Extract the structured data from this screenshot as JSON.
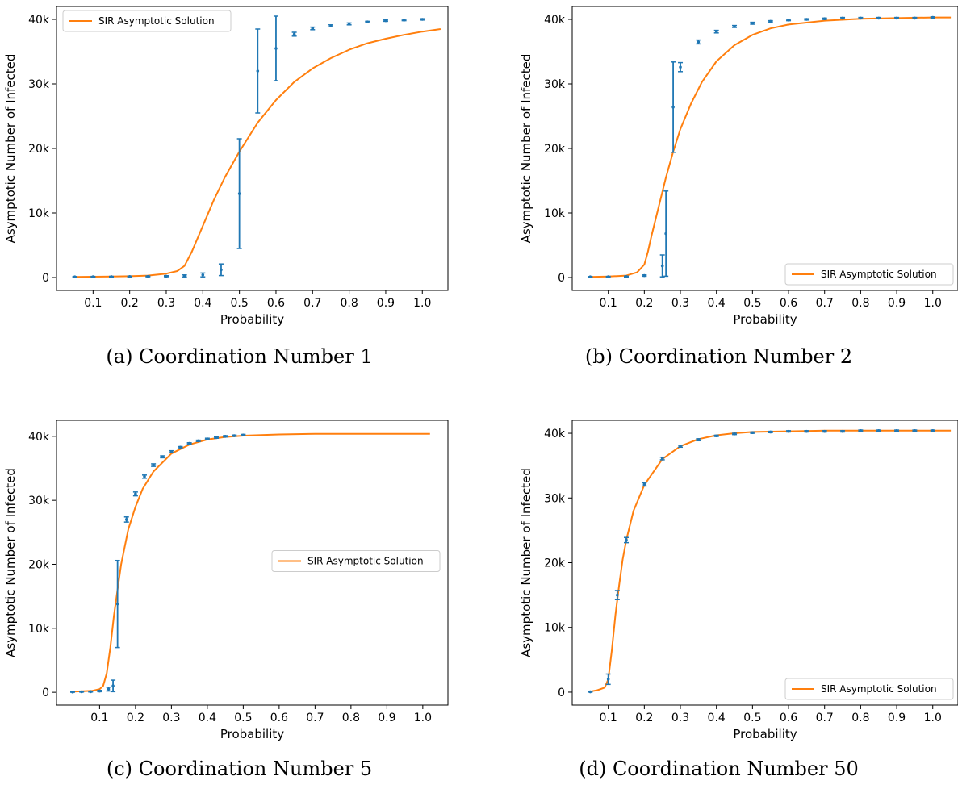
{
  "colors": {
    "data": "#1f77b4",
    "model": "#ff7f0e"
  },
  "chart_data": [
    {
      "type": "scatter",
      "caption": "(a) Coordination Number 1",
      "xlabel": "Probability",
      "ylabel": "Asymptotic Number of Infected",
      "xlim": [
        0.0,
        1.07
      ],
      "ylim": [
        -2000,
        42000
      ],
      "xticks": [
        0.1,
        0.2,
        0.3,
        0.4,
        0.5,
        0.6,
        0.7,
        0.8,
        0.9,
        1.0
      ],
      "xtick_labels": [
        "0.1",
        "0.2",
        "0.3",
        "0.4",
        "0.5",
        "0.6",
        "0.7",
        "0.8",
        "0.9",
        "1.0"
      ],
      "yticks": [
        0,
        10000,
        20000,
        30000,
        40000
      ],
      "ytick_labels": [
        "0",
        "10k",
        "20k",
        "30k",
        "40k"
      ],
      "legend": {
        "label": "SIR Asymptotic Solution",
        "position": "upper-left"
      },
      "grid": false,
      "series": [
        {
          "type": "errorbar",
          "x": [
            0.05,
            0.1,
            0.15,
            0.2,
            0.25,
            0.3,
            0.35,
            0.4,
            0.45,
            0.5,
            0.55,
            0.6,
            0.65,
            0.7,
            0.75,
            0.8,
            0.85,
            0.9,
            0.95,
            1.0
          ],
          "y": [
            100,
            120,
            130,
            150,
            170,
            200,
            250,
            400,
            1200,
            13000,
            32000,
            35500,
            37700,
            38600,
            39000,
            39300,
            39600,
            39800,
            39900,
            40000
          ],
          "err": [
            50,
            50,
            50,
            60,
            60,
            80,
            150,
            300,
            900,
            8500,
            6500,
            5000,
            300,
            200,
            150,
            150,
            100,
            100,
            100,
            100
          ]
        },
        {
          "name": "SIR Asymptotic Solution",
          "type": "line",
          "x": [
            0.05,
            0.1,
            0.15,
            0.2,
            0.25,
            0.3,
            0.33,
            0.35,
            0.37,
            0.4,
            0.43,
            0.46,
            0.5,
            0.55,
            0.6,
            0.65,
            0.7,
            0.75,
            0.8,
            0.85,
            0.9,
            0.95,
            1.0,
            1.05
          ],
          "y": [
            100,
            120,
            150,
            200,
            300,
            600,
            1000,
            1800,
            4000,
            8000,
            12000,
            15500,
            19500,
            24000,
            27500,
            30300,
            32400,
            34000,
            35300,
            36300,
            37000,
            37600,
            38100,
            38500
          ]
        }
      ]
    },
    {
      "type": "scatter",
      "caption": "(b) Coordination Number 2",
      "xlabel": "Probability",
      "ylabel": "Asymptotic Number of Infected",
      "xlim": [
        0.0,
        1.07
      ],
      "ylim": [
        -2000,
        42000
      ],
      "xticks": [
        0.1,
        0.2,
        0.3,
        0.4,
        0.5,
        0.6,
        0.7,
        0.8,
        0.9,
        1.0
      ],
      "xtick_labels": [
        "0.1",
        "0.2",
        "0.3",
        "0.4",
        "0.5",
        "0.6",
        "0.7",
        "0.8",
        "0.9",
        "1.0"
      ],
      "yticks": [
        0,
        10000,
        20000,
        30000,
        40000
      ],
      "ytick_labels": [
        "0",
        "10k",
        "20k",
        "30k",
        "40k"
      ],
      "legend": {
        "label": "SIR Asymptotic Solution",
        "position": "lower-right"
      },
      "grid": false,
      "series": [
        {
          "type": "errorbar",
          "x": [
            0.05,
            0.1,
            0.15,
            0.2,
            0.25,
            0.26,
            0.28,
            0.3,
            0.35,
            0.4,
            0.45,
            0.5,
            0.55,
            0.6,
            0.65,
            0.7,
            0.75,
            0.8,
            0.85,
            0.9,
            0.95,
            1.0
          ],
          "y": [
            100,
            120,
            150,
            300,
            1800,
            6800,
            26400,
            32600,
            36500,
            38100,
            38900,
            39400,
            39700,
            39900,
            40000,
            40100,
            40200,
            40200,
            40200,
            40200,
            40200,
            40300
          ],
          "err": [
            50,
            50,
            60,
            100,
            1700,
            6600,
            7000,
            700,
            300,
            200,
            150,
            150,
            100,
            100,
            100,
            100,
            100,
            100,
            100,
            100,
            100,
            100
          ]
        },
        {
          "name": "SIR Asymptotic Solution",
          "type": "line",
          "x": [
            0.05,
            0.1,
            0.15,
            0.18,
            0.2,
            0.21,
            0.22,
            0.24,
            0.26,
            0.28,
            0.3,
            0.33,
            0.36,
            0.4,
            0.45,
            0.5,
            0.55,
            0.6,
            0.7,
            0.8,
            0.9,
            1.0,
            1.05
          ],
          "y": [
            100,
            150,
            300,
            800,
            2000,
            4000,
            6500,
            11000,
            15500,
            19500,
            23000,
            27000,
            30300,
            33500,
            36000,
            37600,
            38600,
            39200,
            39800,
            40100,
            40200,
            40300,
            40300
          ]
        }
      ]
    },
    {
      "type": "scatter",
      "caption": "(c) Coordination Number 5",
      "xlabel": "Probability",
      "ylabel": "Asymptotic Number of Infected",
      "xlim": [
        -0.02,
        1.07
      ],
      "ylim": [
        -2000,
        42500
      ],
      "xticks": [
        0.1,
        0.2,
        0.3,
        0.4,
        0.5,
        0.6,
        0.7,
        0.8,
        0.9,
        1.0
      ],
      "xtick_labels": [
        "0.1",
        "0.2",
        "0.3",
        "0.4",
        "0.5",
        "0.6",
        "0.7",
        "0.8",
        "0.9",
        "1.0"
      ],
      "yticks": [
        0,
        10000,
        20000,
        30000,
        40000
      ],
      "ytick_labels": [
        "0",
        "10k",
        "20k",
        "30k",
        "40k"
      ],
      "legend": {
        "label": "SIR Asymptotic Solution",
        "position": "center-right"
      },
      "grid": false,
      "series": [
        {
          "type": "errorbar",
          "x": [
            0.025,
            0.05,
            0.075,
            0.1,
            0.125,
            0.1375,
            0.15,
            0.175,
            0.2,
            0.225,
            0.25,
            0.275,
            0.3,
            0.325,
            0.35,
            0.375,
            0.4,
            0.425,
            0.45,
            0.475,
            0.5
          ],
          "y": [
            50,
            80,
            100,
            200,
            500,
            1000,
            13800,
            27000,
            31000,
            33700,
            35500,
            36800,
            37600,
            38300,
            38900,
            39300,
            39600,
            39800,
            40000,
            40100,
            40200
          ],
          "err": [
            40,
            40,
            50,
            100,
            300,
            900,
            6800,
            400,
            300,
            250,
            200,
            150,
            150,
            100,
            100,
            100,
            100,
            100,
            100,
            100,
            100
          ]
        },
        {
          "name": "SIR Asymptotic Solution",
          "type": "line",
          "x": [
            0.025,
            0.05,
            0.08,
            0.1,
            0.11,
            0.12,
            0.13,
            0.14,
            0.15,
            0.16,
            0.18,
            0.2,
            0.22,
            0.25,
            0.3,
            0.35,
            0.4,
            0.45,
            0.5,
            0.6,
            0.7,
            0.8,
            1.0,
            1.02
          ],
          "y": [
            100,
            150,
            250,
            500,
            1000,
            3000,
            7000,
            12000,
            16000,
            20000,
            25500,
            29000,
            31800,
            34500,
            37300,
            38700,
            39500,
            39900,
            40100,
            40300,
            40400,
            40400,
            40400,
            40400
          ]
        }
      ]
    },
    {
      "type": "scatter",
      "caption": "(d) Coordination Number 50",
      "xlabel": "Probability",
      "ylabel": "Asymptotic Number of Infected",
      "xlim": [
        0.0,
        1.07
      ],
      "ylim": [
        -2000,
        42000
      ],
      "xticks": [
        0.1,
        0.2,
        0.3,
        0.4,
        0.5,
        0.6,
        0.7,
        0.8,
        0.9,
        1.0
      ],
      "xtick_labels": [
        "0.1",
        "0.2",
        "0.3",
        "0.4",
        "0.5",
        "0.6",
        "0.7",
        "0.8",
        "0.9",
        "1.0"
      ],
      "yticks": [
        0,
        10000,
        20000,
        30000,
        40000
      ],
      "ytick_labels": [
        "0",
        "10k",
        "20k",
        "30k",
        "40k"
      ],
      "legend": {
        "label": "SIR Asymptotic Solution",
        "position": "lower-right"
      },
      "grid": false,
      "series": [
        {
          "type": "errorbar",
          "x": [
            0.05,
            0.1,
            0.125,
            0.15,
            0.2,
            0.25,
            0.3,
            0.35,
            0.4,
            0.45,
            0.5,
            0.55,
            0.6,
            0.65,
            0.7,
            0.75,
            0.8,
            0.85,
            0.9,
            0.95,
            1.0
          ],
          "y": [
            50,
            2000,
            15000,
            23500,
            32100,
            36100,
            38000,
            39000,
            39600,
            39900,
            40100,
            40200,
            40300,
            40300,
            40300,
            40300,
            40400,
            40400,
            40400,
            40400,
            40400
          ],
          "err": [
            40,
            800,
            700,
            400,
            250,
            200,
            150,
            150,
            100,
            100,
            100,
            100,
            100,
            100,
            100,
            100,
            100,
            100,
            100,
            100,
            100
          ]
        },
        {
          "name": "SIR Asymptotic Solution",
          "type": "line",
          "x": [
            0.05,
            0.07,
            0.09,
            0.1,
            0.11,
            0.12,
            0.13,
            0.14,
            0.15,
            0.17,
            0.2,
            0.25,
            0.3,
            0.35,
            0.4,
            0.45,
            0.5,
            0.6,
            0.7,
            0.8,
            0.9,
            1.0,
            1.05
          ],
          "y": [
            100,
            300,
            700,
            2000,
            6500,
            12000,
            16500,
            20500,
            23500,
            28000,
            32000,
            36000,
            38000,
            39100,
            39700,
            40000,
            40200,
            40300,
            40400,
            40400,
            40400,
            40400,
            40400
          ]
        }
      ]
    }
  ]
}
